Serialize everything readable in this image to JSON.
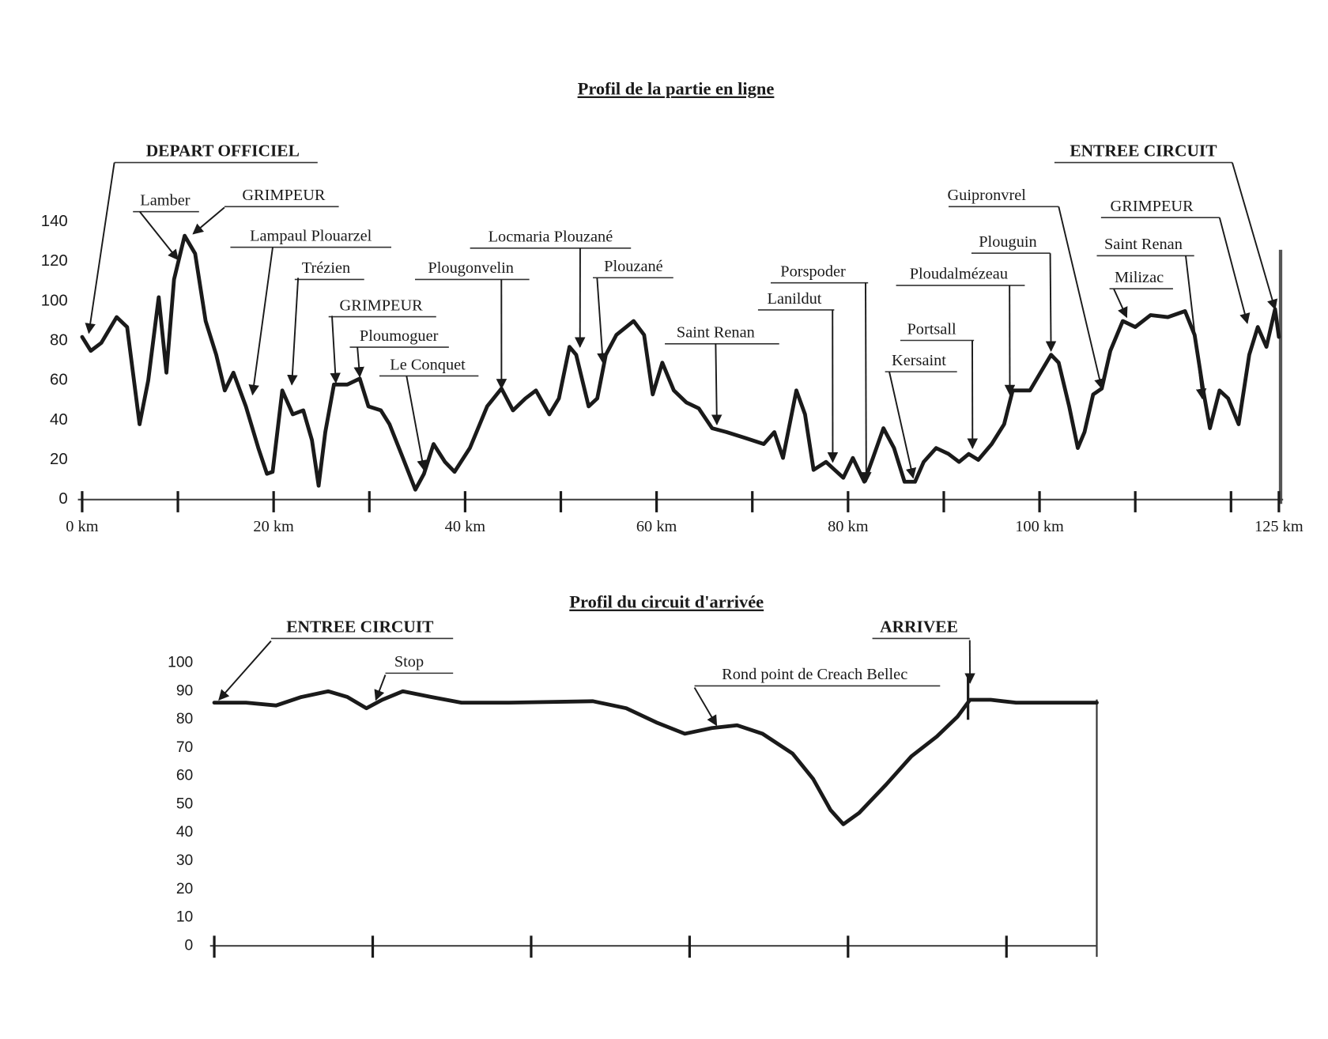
{
  "chart_data": [
    {
      "type": "line",
      "title": "Profil de la partie en ligne",
      "color": "#1a1a1a",
      "x": [
        0,
        0.9,
        2,
        3.6,
        4.7,
        6,
        6.9,
        8,
        8.8,
        9.6,
        10.7,
        11.8,
        12.9,
        14,
        14.9,
        15.8,
        17.1,
        18.4,
        19.3,
        19.9,
        20.9,
        22,
        23.1,
        24,
        24.7,
        25.4,
        26.3,
        27.7,
        29,
        29.9,
        31.2,
        32.1,
        33.5,
        34.8,
        35.7,
        36.7,
        37.9,
        38.9,
        40.5,
        42.3,
        43.8,
        45,
        46.3,
        47.4,
        48.8,
        49.8,
        50.9,
        51.6,
        52.9,
        53.8,
        54.7,
        55.8,
        57.6,
        58.7,
        59.6,
        60.6,
        61.8,
        63.1,
        64.4,
        65.8,
        67.3,
        69.3,
        71.2,
        72.3,
        73.2,
        74.6,
        75.5,
        76.4,
        77.7,
        78.6,
        79.5,
        80.5,
        81.7,
        82.6,
        83.7,
        84.8,
        85.9,
        87,
        87.9,
        89.2,
        90.5,
        91.6,
        92.6,
        93.6,
        95,
        96.3,
        97.2,
        99,
        100.1,
        101.2,
        102,
        103.1,
        104,
        104.7,
        105.6,
        106.5,
        107.4,
        108.7,
        110,
        111.6,
        113.4,
        115.2,
        116.2,
        117.1,
        117.8,
        118.8,
        119.7,
        120.8,
        121.9,
        122.8,
        123.7,
        124.6,
        125
      ],
      "values": [
        82,
        75,
        79,
        92,
        87,
        38,
        60,
        102,
        64,
        111,
        133,
        124,
        90,
        73,
        55,
        64,
        47,
        26,
        13,
        14,
        55,
        43,
        45,
        30,
        7,
        34,
        58,
        58,
        61,
        47,
        45,
        38,
        21,
        5,
        13,
        28,
        19,
        14,
        26,
        47,
        56,
        45,
        51,
        55,
        43,
        51,
        77,
        73,
        47,
        51,
        73,
        83,
        90,
        83,
        53,
        69,
        55,
        49,
        46,
        36,
        34,
        31,
        28,
        34,
        21,
        55,
        43,
        15,
        19,
        15,
        11,
        21,
        9,
        21,
        36,
        26,
        9,
        9,
        19,
        26,
        23,
        19,
        23,
        20,
        28,
        38,
        55,
        55,
        64,
        73,
        69,
        47,
        26,
        34,
        53,
        56,
        75,
        90,
        87,
        93,
        92,
        95,
        83,
        55,
        36,
        55,
        51,
        38,
        73,
        87,
        77,
        96,
        82
      ],
      "xlim": [
        0,
        125
      ],
      "ylim": [
        0,
        140
      ],
      "xticks": [
        {
          "value": 0,
          "label": "0 km"
        },
        {
          "value": 10
        },
        {
          "value": 20,
          "label": "20 km"
        },
        {
          "value": 30
        },
        {
          "value": 40,
          "label": "40 km"
        },
        {
          "value": 50
        },
        {
          "value": 60,
          "label": "60 km"
        },
        {
          "value": 70
        },
        {
          "value": 80,
          "label": "80 km"
        },
        {
          "value": 90
        },
        {
          "value": 100,
          "label": "100 km"
        },
        {
          "value": 110
        },
        {
          "value": 120
        },
        {
          "value": 125,
          "label": "125 km"
        }
      ],
      "yticks": [
        0,
        20,
        40,
        60,
        80,
        100,
        120,
        140
      ],
      "annotations": [
        {
          "text": "DEPART OFFICIEL",
          "x": 0.7,
          "y": 84
        },
        {
          "text": "Lamber",
          "x": 10,
          "y": 121
        },
        {
          "text": "GRIMPEUR",
          "x": 11.6,
          "y": 134
        },
        {
          "text": "Lampaul Plouarzel",
          "x": 17.8,
          "y": 53
        },
        {
          "text": "Trézien",
          "x": 21.9,
          "y": 58
        },
        {
          "text": "GRIMPEUR",
          "x": 26.5,
          "y": 59
        },
        {
          "text": "Ploumoguer",
          "x": 29,
          "y": 62
        },
        {
          "text": "Le Conquet",
          "x": 35.7,
          "y": 15
        },
        {
          "text": "Plougonvelin",
          "x": 43.8,
          "y": 56
        },
        {
          "text": "Locmaria Plouzané",
          "x": 52,
          "y": 77
        },
        {
          "text": "Plouzané",
          "x": 54.4,
          "y": 69
        },
        {
          "text": "Saint Renan",
          "x": 66.3,
          "y": 38
        },
        {
          "text": "Porspoder",
          "x": 81.9,
          "y": 9
        },
        {
          "text": "Lanildut",
          "x": 78.4,
          "y": 19
        },
        {
          "text": "Ploudalmézeau",
          "x": 96.9,
          "y": 53
        },
        {
          "text": "Portsall",
          "x": 93,
          "y": 26
        },
        {
          "text": "Kersaint",
          "x": 86.8,
          "y": 11
        },
        {
          "text": "Guipronvrel",
          "x": 106.5,
          "y": 56
        },
        {
          "text": "Plouguin",
          "x": 101.2,
          "y": 75
        },
        {
          "text": "GRIMPEUR",
          "x": 121.7,
          "y": 89
        },
        {
          "text": "Saint Renan",
          "x": 117,
          "y": 51
        },
        {
          "text": "Milizac",
          "x": 109.1,
          "y": 92
        },
        {
          "text": "ENTREE CIRCUIT",
          "x": 124.6,
          "y": 96
        }
      ]
    },
    {
      "type": "line",
      "title": "Profil du circuit d'arrivée",
      "color": "#1a1a1a",
      "x": [
        0,
        0.2,
        0.39,
        0.55,
        0.72,
        0.84,
        0.96,
        1.06,
        1.19,
        1.37,
        1.56,
        1.86,
        2.39,
        2.6,
        2.79,
        2.97,
        3.14,
        3.3,
        3.46,
        3.65,
        3.78,
        3.89,
        3.97,
        4.07,
        4.24,
        4.4,
        4.56,
        4.69,
        4.77,
        4.9,
        5.06,
        5.57
      ],
      "values": [
        86,
        86,
        85,
        88,
        90,
        88,
        84,
        87,
        90,
        88,
        86,
        86,
        86.5,
        84,
        79,
        75,
        77,
        78,
        75,
        68,
        59,
        48,
        43,
        47,
        57,
        67,
        74,
        81,
        87,
        87,
        86,
        86
      ],
      "xlim": [
        0,
        5.57
      ],
      "ylim": [
        0,
        100
      ],
      "xticks": [
        {
          "value": 0
        },
        {
          "value": 1
        },
        {
          "value": 2
        },
        {
          "value": 3
        },
        {
          "value": 4
        },
        {
          "value": 5
        }
      ],
      "yticks": [
        0,
        10,
        20,
        30,
        40,
        50,
        60,
        70,
        80,
        90,
        100
      ],
      "annotations": [
        {
          "text": "ENTREE CIRCUIT",
          "x": 0.03,
          "y": 87
        },
        {
          "text": "Stop",
          "x": 1.02,
          "y": 87
        },
        {
          "text": "Rond point de Creach Bellec",
          "x": 3.17,
          "y": 78
        },
        {
          "text": "ARRIVEE",
          "x": 4.77,
          "y": 93
        }
      ]
    }
  ]
}
